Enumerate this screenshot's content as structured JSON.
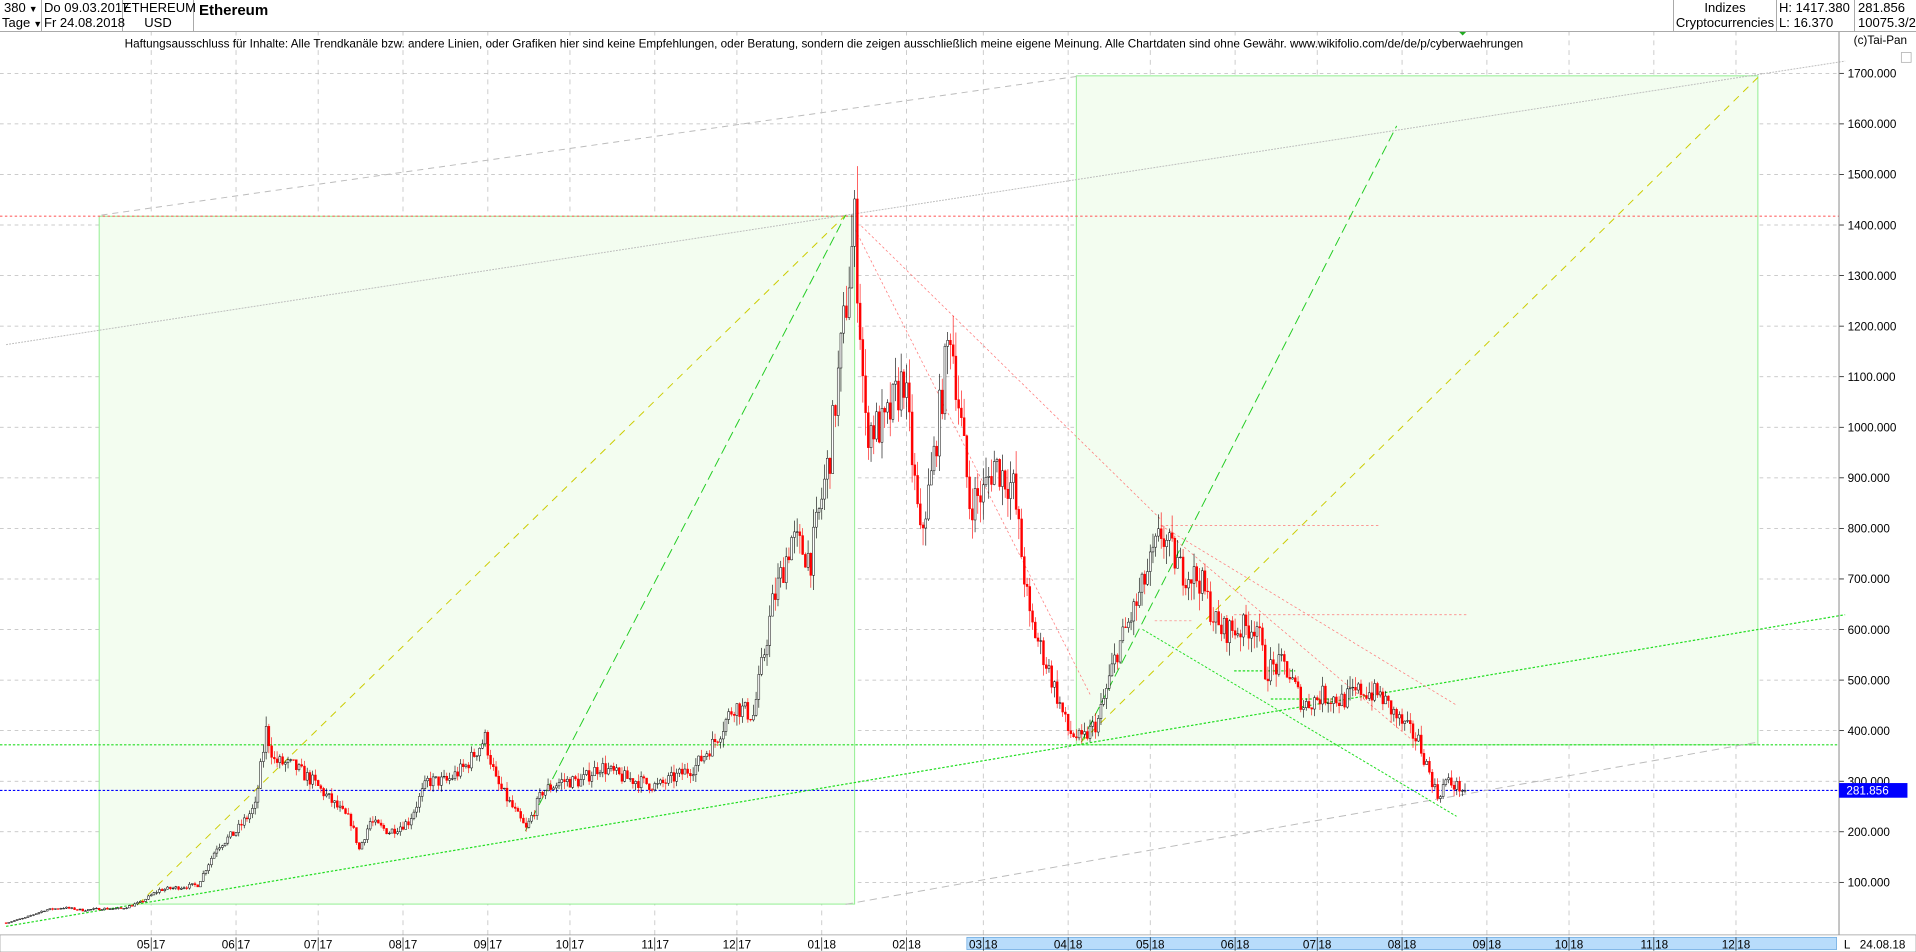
{
  "header": {
    "period_value": "380",
    "period_unit": "Tage",
    "dropdown_icon": "chevron-down-icon",
    "date_from": "Do 09.03.2017",
    "date_to": "Fr 24.08.2018",
    "symbol": "ETHEREUM",
    "currency": "USD",
    "title": "Ethereum",
    "category": "Indizes",
    "subcategory": "Cryptocurrencies",
    "high": "H: 1417.380",
    "low": "L: 16.370",
    "last": "281.856",
    "volume": "10075.3/2"
  },
  "disclaimer": "Haftungsausschluss für Inhalte: Alle Trendkanäle bzw. andere Linien, oder Grafiken hier sind keine Empfehlungen, oder Beratung, sondern die zeigen ausschließlich meine eigene Meinung. Alle Chartdaten sind ohne Gewähr.  www.wikifolio.com/de/de/p/cyberwaehrungen",
  "copyright": "(c)Tai-Pan",
  "axis_footer": {
    "scroll_label": "L",
    "last_date": "24.08.18"
  },
  "colors": {
    "up": "#ffffff",
    "down": "#ff0000",
    "outline": "#000000",
    "current_price": "#0000ff",
    "box_fill": "#f3fdf0",
    "box_stroke": "#90ee90"
  },
  "chart_data": {
    "type": "candlestick",
    "title": "Ethereum",
    "ylim": [
      0,
      1750
    ],
    "grid": true,
    "y_ticks": [
      "100.000",
      "200.000",
      "300.000",
      "400.000",
      "500.000",
      "600.000",
      "700.000",
      "800.000",
      "900.000",
      "1000.000",
      "1100.000",
      "1200.000",
      "1300.000",
      "1400.000",
      "1500.000",
      "1600.000",
      "1700.000"
    ],
    "x_ticks": [
      {
        "date": "2017-05-01",
        "m": "05",
        "y": "17"
      },
      {
        "date": "2017-06-01",
        "m": "06",
        "y": "17"
      },
      {
        "date": "2017-07-01",
        "m": "07",
        "y": "17"
      },
      {
        "date": "2017-08-01",
        "m": "08",
        "y": "17"
      },
      {
        "date": "2017-09-01",
        "m": "09",
        "y": "17"
      },
      {
        "date": "2017-10-01",
        "m": "10",
        "y": "17"
      },
      {
        "date": "2017-11-01",
        "m": "11",
        "y": "17"
      },
      {
        "date": "2017-12-01",
        "m": "12",
        "y": "17"
      },
      {
        "date": "2018-01-01",
        "m": "01",
        "y": "18"
      },
      {
        "date": "2018-02-01",
        "m": "02",
        "y": "18"
      },
      {
        "date": "2018-03-01",
        "m": "03",
        "y": "18"
      },
      {
        "date": "2018-04-01",
        "m": "04",
        "y": "18"
      },
      {
        "date": "2018-05-01",
        "m": "05",
        "y": "18"
      },
      {
        "date": "2018-06-01",
        "m": "06",
        "y": "18"
      },
      {
        "date": "2018-07-01",
        "m": "07",
        "y": "18"
      },
      {
        "date": "2018-08-01",
        "m": "08",
        "y": "18"
      },
      {
        "date": "2018-09-01",
        "m": "09",
        "y": "18"
      },
      {
        "date": "2018-10-01",
        "m": "10",
        "y": "18"
      },
      {
        "date": "2018-11-01",
        "m": "11",
        "y": "18"
      },
      {
        "date": "2018-12-01",
        "m": "12",
        "y": "18"
      }
    ],
    "current_price": 281.856,
    "high": 1417.38,
    "low": 16.37,
    "horizontal_levels": [
      1417.38,
      372,
      281.856
    ],
    "closes": [
      [
        "2017-03-09",
        20
      ],
      [
        "2017-03-16",
        30
      ],
      [
        "2017-03-23",
        45
      ],
      [
        "2017-03-30",
        50
      ],
      [
        "2017-04-06",
        45
      ],
      [
        "2017-04-13",
        48
      ],
      [
        "2017-04-20",
        48
      ],
      [
        "2017-04-27",
        60
      ],
      [
        "2017-05-04",
        85
      ],
      [
        "2017-05-11",
        90
      ],
      [
        "2017-05-18",
        95
      ],
      [
        "2017-05-25",
        170
      ],
      [
        "2017-06-01",
        200
      ],
      [
        "2017-06-08",
        250
      ],
      [
        "2017-06-12",
        400
      ],
      [
        "2017-06-15",
        340
      ],
      [
        "2017-06-22",
        330
      ],
      [
        "2017-06-29",
        300
      ],
      [
        "2017-07-06",
        260
      ],
      [
        "2017-07-13",
        220
      ],
      [
        "2017-07-16",
        165
      ],
      [
        "2017-07-20",
        220
      ],
      [
        "2017-07-27",
        200
      ],
      [
        "2017-08-03",
        220
      ],
      [
        "2017-08-10",
        300
      ],
      [
        "2017-08-17",
        300
      ],
      [
        "2017-08-24",
        330
      ],
      [
        "2017-08-31",
        385
      ],
      [
        "2017-09-04",
        300
      ],
      [
        "2017-09-15",
        205
      ],
      [
        "2017-09-21",
        280
      ],
      [
        "2017-09-28",
        300
      ],
      [
        "2017-10-05",
        300
      ],
      [
        "2017-10-12",
        330
      ],
      [
        "2017-10-19",
        310
      ],
      [
        "2017-10-26",
        300
      ],
      [
        "2017-11-02",
        290
      ],
      [
        "2017-11-09",
        310
      ],
      [
        "2017-11-16",
        330
      ],
      [
        "2017-11-23",
        380
      ],
      [
        "2017-11-30",
        450
      ],
      [
        "2017-12-07",
        430
      ],
      [
        "2017-12-14",
        650
      ],
      [
        "2017-12-21",
        780
      ],
      [
        "2017-12-28",
        740
      ],
      [
        "2018-01-04",
        950
      ],
      [
        "2018-01-10",
        1250
      ],
      [
        "2018-01-13",
        1400
      ],
      [
        "2018-01-17",
        1000
      ],
      [
        "2018-01-24",
        1000
      ],
      [
        "2018-01-31",
        1100
      ],
      [
        "2018-02-06",
        780
      ],
      [
        "2018-02-10",
        900
      ],
      [
        "2018-02-17",
        1200
      ],
      [
        "2018-02-24",
        850
      ],
      [
        "2018-03-01",
        870
      ],
      [
        "2018-03-05",
        930
      ],
      [
        "2018-03-12",
        880
      ],
      [
        "2018-03-18",
        620
      ],
      [
        "2018-03-25",
        520
      ],
      [
        "2018-04-01",
        400
      ],
      [
        "2018-04-06",
        380
      ],
      [
        "2018-04-12",
        420
      ],
      [
        "2018-04-19",
        560
      ],
      [
        "2018-04-26",
        650
      ],
      [
        "2018-05-05",
        790
      ],
      [
        "2018-05-12",
        720
      ],
      [
        "2018-05-19",
        700
      ],
      [
        "2018-05-26",
        600
      ],
      [
        "2018-06-02",
        600
      ],
      [
        "2018-06-09",
        610
      ],
      [
        "2018-06-12",
        520
      ],
      [
        "2018-06-19",
        530
      ],
      [
        "2018-06-26",
        450
      ],
      [
        "2018-07-03",
        470
      ],
      [
        "2018-07-10",
        460
      ],
      [
        "2018-07-17",
        480
      ],
      [
        "2018-07-24",
        470
      ],
      [
        "2018-07-31",
        420
      ],
      [
        "2018-08-07",
        380
      ],
      [
        "2018-08-14",
        270
      ],
      [
        "2018-08-17",
        300
      ],
      [
        "2018-08-24",
        282
      ]
    ]
  }
}
